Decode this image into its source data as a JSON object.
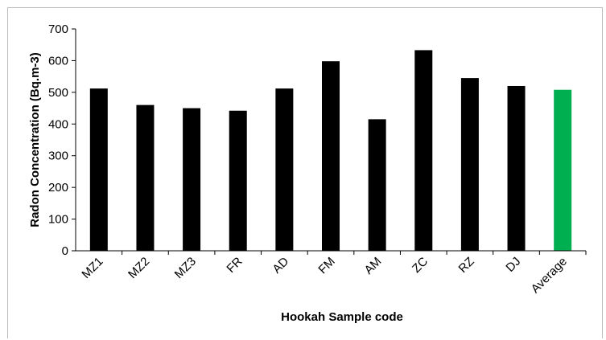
{
  "chart_data": {
    "type": "bar",
    "title": "",
    "xlabel": "Hookah Sample code",
    "ylabel": "Radon Concentration (Bq.m-3)",
    "ylim": [
      0,
      700
    ],
    "yticks": [
      0,
      100,
      200,
      300,
      400,
      500,
      600,
      700
    ],
    "categories": [
      "MZ1",
      "MZ2",
      "MZ3",
      "FR",
      "AD",
      "FM",
      "AM",
      "ZC",
      "RZ",
      "DJ",
      "Average"
    ],
    "values": [
      512,
      460,
      450,
      442,
      512,
      598,
      415,
      633,
      545,
      520,
      508
    ],
    "bar_colors": [
      "#000000",
      "#000000",
      "#000000",
      "#000000",
      "#000000",
      "#000000",
      "#000000",
      "#000000",
      "#000000",
      "#000000",
      "#00b050"
    ],
    "grid": false,
    "legend": "none"
  }
}
